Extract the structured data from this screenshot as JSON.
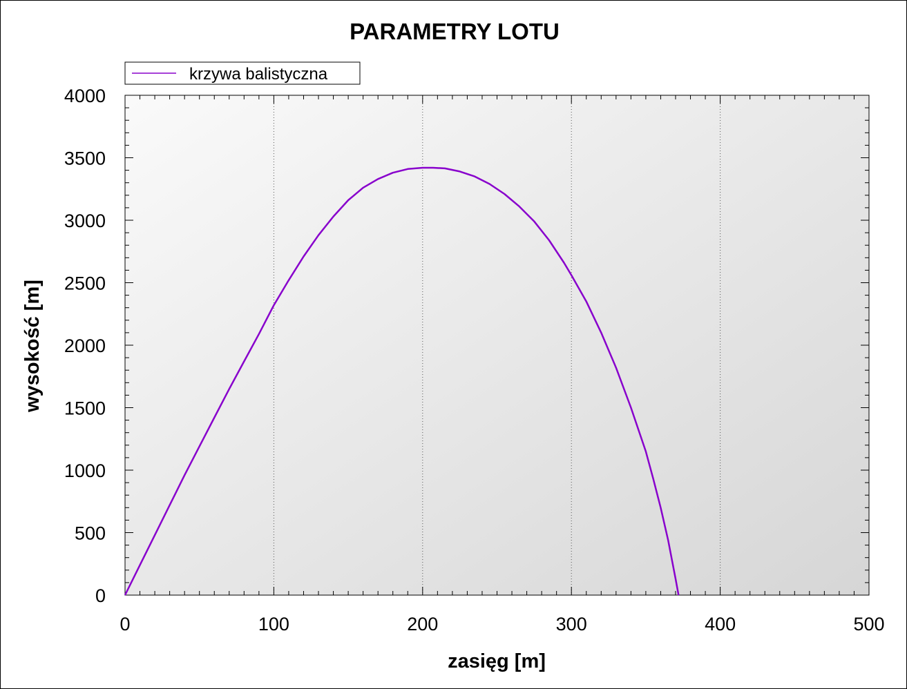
{
  "chart_data": {
    "type": "line",
    "title": "PARAMETRY LOTU",
    "xlabel": "zasięg [m]",
    "ylabel": "wysokość [m]",
    "xlim": [
      0,
      500
    ],
    "ylim": [
      0,
      4000
    ],
    "x_ticks": [
      "0",
      "100",
      "200",
      "300",
      "400",
      "500"
    ],
    "y_ticks": [
      "0",
      "500",
      "1000",
      "1500",
      "2000",
      "2500",
      "3000",
      "3500",
      "4000"
    ],
    "grid": "vertical dotted",
    "legend_position": "top-left",
    "background": "gradient light gray",
    "series": [
      {
        "name": "krzywa balistyczna",
        "color": "#8800cc",
        "points": [
          [
            0,
            0
          ],
          [
            10,
            240
          ],
          [
            20,
            480
          ],
          [
            30,
            720
          ],
          [
            40,
            960
          ],
          [
            50,
            1190
          ],
          [
            60,
            1420
          ],
          [
            70,
            1650
          ],
          [
            80,
            1870
          ],
          [
            90,
            2090
          ],
          [
            100,
            2320
          ],
          [
            110,
            2520
          ],
          [
            120,
            2710
          ],
          [
            130,
            2880
          ],
          [
            140,
            3030
          ],
          [
            150,
            3160
          ],
          [
            160,
            3260
          ],
          [
            170,
            3330
          ],
          [
            180,
            3380
          ],
          [
            190,
            3410
          ],
          [
            200,
            3420
          ],
          [
            207,
            3420
          ],
          [
            215,
            3415
          ],
          [
            225,
            3390
          ],
          [
            235,
            3350
          ],
          [
            245,
            3290
          ],
          [
            255,
            3210
          ],
          [
            265,
            3110
          ],
          [
            275,
            2990
          ],
          [
            285,
            2840
          ],
          [
            295,
            2660
          ],
          [
            300,
            2560
          ],
          [
            310,
            2350
          ],
          [
            320,
            2100
          ],
          [
            330,
            1820
          ],
          [
            340,
            1500
          ],
          [
            350,
            1150
          ],
          [
            355,
            930
          ],
          [
            360,
            700
          ],
          [
            365,
            440
          ],
          [
            370,
            130
          ],
          [
            372,
            0
          ]
        ]
      }
    ]
  }
}
